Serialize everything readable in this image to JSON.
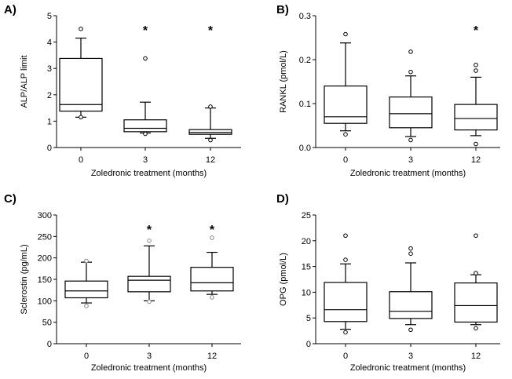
{
  "chart_data": [
    {
      "type": "box",
      "panel_label": "A)",
      "title": "",
      "xlabel": "Zoledronic treatment (months)",
      "ylabel": "ALP/ALP limit",
      "ylim": [
        0,
        5
      ],
      "yticks": [
        "0",
        "1",
        "2",
        "3",
        "4",
        "5"
      ],
      "categories": [
        "0",
        "3",
        "12"
      ],
      "series": [
        {
          "name": "0",
          "whisker_low": 1.15,
          "q1": 1.38,
          "median": 1.63,
          "q3": 3.38,
          "whisker_high": 4.15,
          "outliers": [
            4.5,
            1.15
          ],
          "significant": false
        },
        {
          "name": "3",
          "whisker_low": 0.55,
          "q1": 0.6,
          "median": 0.73,
          "q3": 1.05,
          "whisker_high": 1.72,
          "outliers": [
            3.38,
            0.52
          ],
          "significant": true
        },
        {
          "name": "12",
          "whisker_low": 0.35,
          "q1": 0.5,
          "median": 0.57,
          "q3": 0.68,
          "whisker_high": 1.5,
          "outliers": [
            1.55,
            0.28
          ],
          "significant": true
        }
      ],
      "significance_marker": "*"
    },
    {
      "type": "box",
      "panel_label": "B)",
      "title": "",
      "xlabel": "Zoledronic treatment (months)",
      "ylabel": "RANKL (pmol/L)",
      "ylim": [
        0,
        0.3
      ],
      "yticks": [
        "0.0",
        "0.1",
        "0.2",
        "0.3"
      ],
      "categories": [
        "0",
        "3",
        "12"
      ],
      "series": [
        {
          "name": "0",
          "whisker_low": 0.038,
          "q1": 0.055,
          "median": 0.07,
          "q3": 0.14,
          "whisker_high": 0.238,
          "outliers": [
            0.258,
            0.03
          ],
          "significant": false
        },
        {
          "name": "3",
          "whisker_low": 0.025,
          "q1": 0.045,
          "median": 0.077,
          "q3": 0.115,
          "whisker_high": 0.163,
          "outliers": [
            0.218,
            0.172,
            0.017
          ],
          "significant": false
        },
        {
          "name": "12",
          "whisker_low": 0.027,
          "q1": 0.04,
          "median": 0.066,
          "q3": 0.098,
          "whisker_high": 0.16,
          "outliers": [
            0.188,
            0.175,
            0.008
          ],
          "significant": true
        }
      ],
      "significance_marker": "*"
    },
    {
      "type": "box",
      "panel_label": "C)",
      "title": "",
      "xlabel": "Zoledronic treatment (months)",
      "ylabel": "Sclerostin (pg/mL)",
      "ylim": [
        0,
        300
      ],
      "yticks": [
        "0",
        "50",
        "100",
        "150",
        "200",
        "250",
        "300"
      ],
      "categories": [
        "0",
        "3",
        "12"
      ],
      "series": [
        {
          "name": "0",
          "whisker_low": 95,
          "q1": 107,
          "median": 123,
          "q3": 146,
          "whisker_high": 190,
          "outliers": [
            193,
            88
          ],
          "significant": false
        },
        {
          "name": "3",
          "whisker_low": 100,
          "q1": 121,
          "median": 148,
          "q3": 157,
          "whisker_high": 228,
          "outliers": [
            240,
            98
          ],
          "significant": true
        },
        {
          "name": "12",
          "whisker_low": 115,
          "q1": 123,
          "median": 142,
          "q3": 178,
          "whisker_high": 213,
          "outliers": [
            247,
            108
          ],
          "significant": true
        }
      ],
      "significance_marker": "*"
    },
    {
      "type": "box",
      "panel_label": "D)",
      "title": "",
      "xlabel": "Zoledronic treatment (months)",
      "ylabel": "OPG (pmol/L)",
      "ylim": [
        0,
        25
      ],
      "yticks": [
        "0",
        "5",
        "10",
        "15",
        "20",
        "25"
      ],
      "categories": [
        "0",
        "3",
        "12"
      ],
      "series": [
        {
          "name": "0",
          "whisker_low": 2.8,
          "q1": 4.3,
          "median": 6.6,
          "q3": 11.9,
          "whisker_high": 15.5,
          "outliers": [
            21.0,
            16.3,
            2.2
          ],
          "significant": false
        },
        {
          "name": "3",
          "whisker_low": 3.7,
          "q1": 4.9,
          "median": 6.3,
          "q3": 10.1,
          "whisker_high": 15.7,
          "outliers": [
            18.5,
            17.5,
            2.7
          ],
          "significant": false
        },
        {
          "name": "12",
          "whisker_low": 3.7,
          "q1": 4.2,
          "median": 7.4,
          "q3": 11.8,
          "whisker_high": 13.4,
          "outliers": [
            21.0,
            13.7,
            3.0
          ],
          "significant": false
        }
      ],
      "significance_marker": "*"
    }
  ]
}
